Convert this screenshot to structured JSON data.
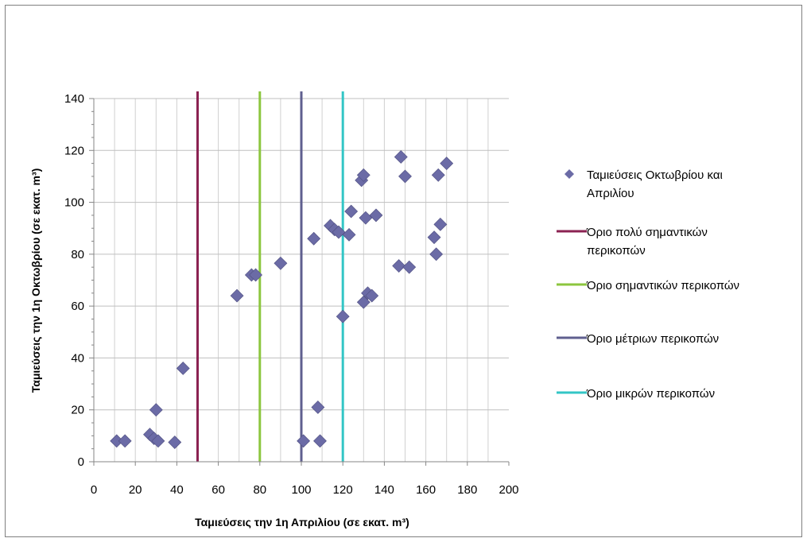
{
  "chart_data": {
    "type": "scatter",
    "xlabel": "Ταμιεύσεις την 1η Απριλίου (σε εκατ. m³)",
    "ylabel": "Ταμιεύσεις την 1η Οκτωβρίου (σε εκατ. m³)",
    "xlim": [
      0,
      200
    ],
    "ylim": [
      0,
      140
    ],
    "x_ticks": [
      "0",
      "20",
      "40",
      "60",
      "80",
      "100",
      "120",
      "140",
      "160",
      "180",
      "200"
    ],
    "y_ticks": [
      "0",
      "20",
      "40",
      "60",
      "80",
      "100",
      "120",
      "140"
    ],
    "grid": "vertical minor and horizontal major",
    "legend_position": "right",
    "series": [
      {
        "name": "Ταμιεύσεις Οκτωβρίου και Απριλίου",
        "marker": "diamond",
        "color": "#6B6BA6",
        "points": [
          [
            11,
            8
          ],
          [
            15,
            8
          ],
          [
            27,
            10.5
          ],
          [
            29,
            9
          ],
          [
            30,
            20
          ],
          [
            31,
            8
          ],
          [
            39,
            7.5
          ],
          [
            43,
            36
          ],
          [
            69,
            64
          ],
          [
            76,
            72
          ],
          [
            78,
            72
          ],
          [
            90,
            76.5
          ],
          [
            101,
            8
          ],
          [
            106,
            86
          ],
          [
            108,
            21
          ],
          [
            109,
            8
          ],
          [
            114,
            91
          ],
          [
            116,
            89.5
          ],
          [
            118,
            88.5
          ],
          [
            120,
            56
          ],
          [
            123,
            87.5
          ],
          [
            124,
            96.5
          ],
          [
            129,
            108.5
          ],
          [
            130,
            110.5
          ],
          [
            130,
            61.5
          ],
          [
            131,
            94
          ],
          [
            132,
            65
          ],
          [
            134,
            64
          ],
          [
            136,
            95
          ],
          [
            147,
            75.5
          ],
          [
            148,
            117.5
          ],
          [
            150,
            110
          ],
          [
            152,
            75
          ],
          [
            164,
            86.5
          ],
          [
            165,
            80
          ],
          [
            166,
            110.5
          ],
          [
            167,
            91.5
          ],
          [
            170,
            115
          ]
        ]
      }
    ],
    "thresholds": [
      {
        "name": "Όριο πολύ σημαντικών περικοπών",
        "legend_lines": [
          "Όριο πολύ σημαντικών",
          "περικοπών"
        ],
        "x": 50,
        "color": "#8B2252"
      },
      {
        "name": "Όριο σημαντικών περικοπών",
        "legend_lines": [
          "Όριο σημαντικών περικοπών"
        ],
        "x": 80,
        "color": "#8CC63E"
      },
      {
        "name": "Όριο μέτριων περικοπών",
        "legend_lines": [
          "Όριο μέτριων περικοπών"
        ],
        "x": 100,
        "color": "#5F5F8F"
      },
      {
        "name": "Όριο μικρών περικοπών",
        "legend_lines": [
          "Όριο μικρών περικοπών"
        ],
        "x": 120,
        "color": "#33C6C6"
      }
    ],
    "legend_first_lines": [
      "Ταμιεύσεις Οκτωβρίου και",
      "Απριλίου"
    ]
  }
}
